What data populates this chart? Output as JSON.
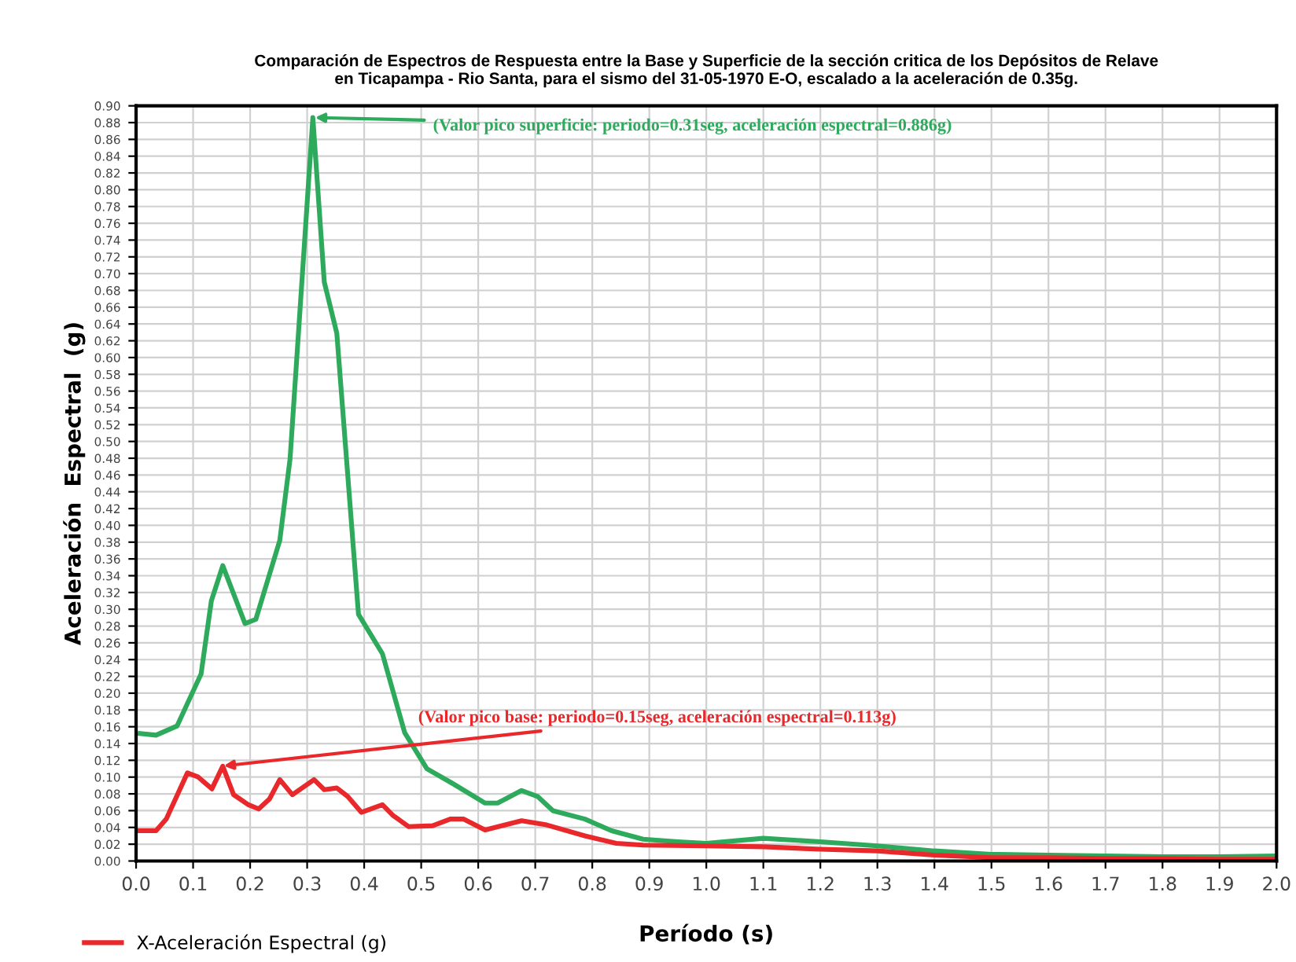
{
  "chart_data": {
    "type": "line",
    "title": "Comparación de Espectros de Respuesta entre la Base y Superficie de la sección critica de los Depósitos de Relave\nen Ticapampa - Rio Santa, para el sismo del 31-05-1970 E-O, escalado a la aceleración de 0.35g.",
    "xlabel": "Período (s)",
    "ylabel": "Aceleración  Espectral  (g)",
    "series": [
      {
        "color": "#2eaa5c",
        "x": [
          0.007,
          0.035,
          0.072,
          0.114,
          0.132,
          0.152,
          0.191,
          0.21,
          0.252,
          0.27,
          0.31,
          0.33,
          0.352,
          0.39,
          0.432,
          0.471,
          0.51,
          0.556,
          0.612,
          0.634,
          0.676,
          0.704,
          0.731,
          0.787,
          0.834,
          0.889,
          0.95,
          1.0,
          1.1,
          1.2,
          1.3,
          1.4,
          1.5,
          1.6,
          1.7,
          1.8,
          1.9,
          2.0
        ],
        "values": [
          0.152,
          0.15,
          0.161,
          0.223,
          0.31,
          0.352,
          0.283,
          0.288,
          0.382,
          0.479,
          0.886,
          0.69,
          0.629,
          0.294,
          0.247,
          0.153,
          0.11,
          0.092,
          0.069,
          0.069,
          0.084,
          0.077,
          0.06,
          0.05,
          0.036,
          0.026,
          0.023,
          0.021,
          0.027,
          0.023,
          0.018,
          0.012,
          0.008,
          0.007,
          0.006,
          0.005,
          0.005,
          0.006
        ]
      },
      {
        "name": "X-Aceleración Espectral (g)",
        "color": "#e8282b",
        "x": [
          0.007,
          0.035,
          0.053,
          0.09,
          0.109,
          0.133,
          0.152,
          0.171,
          0.197,
          0.215,
          0.234,
          0.252,
          0.274,
          0.312,
          0.33,
          0.352,
          0.371,
          0.395,
          0.432,
          0.451,
          0.478,
          0.52,
          0.551,
          0.574,
          0.612,
          0.676,
          0.72,
          0.787,
          0.842,
          0.889,
          1.0,
          1.1,
          1.2,
          1.3,
          1.4,
          1.5,
          1.6,
          1.7,
          1.8,
          1.9,
          2.0
        ],
        "values": [
          0.036,
          0.036,
          0.05,
          0.105,
          0.1,
          0.086,
          0.113,
          0.079,
          0.067,
          0.062,
          0.074,
          0.097,
          0.079,
          0.097,
          0.085,
          0.087,
          0.077,
          0.058,
          0.067,
          0.054,
          0.041,
          0.042,
          0.05,
          0.05,
          0.037,
          0.048,
          0.043,
          0.03,
          0.021,
          0.019,
          0.018,
          0.017,
          0.014,
          0.012,
          0.007,
          0.004,
          0.004,
          0.003,
          0.003,
          0.002,
          0.002
        ]
      }
    ],
    "annotations": [
      {
        "text": "(Valor pico superficie: periodo=0.31seg, aceleración espectral=0.886g)",
        "x": 0.31,
        "y": 0.886
      },
      {
        "text": "(Valor pico base: periodo=0.15seg, aceleración espectral=0.113g)",
        "x": 0.15,
        "y": 0.113
      }
    ],
    "xlim": [
      0.0,
      2.0
    ],
    "xticks": [
      {
        "value": 0.0,
        "label": "0.0"
      },
      {
        "value": 0.1,
        "label": "0.1"
      },
      {
        "value": 0.2,
        "label": "0.2"
      },
      {
        "value": 0.3,
        "label": "0.3"
      },
      {
        "value": 0.4,
        "label": "0.4"
      },
      {
        "value": 0.5,
        "label": "0.5"
      },
      {
        "value": 0.6,
        "label": "0.6"
      },
      {
        "value": 0.7,
        "label": "0.7"
      },
      {
        "value": 0.8,
        "label": "0.8"
      },
      {
        "value": 0.9,
        "label": "0.9"
      },
      {
        "value": 1.0,
        "label": "1.0"
      },
      {
        "value": 1.1,
        "label": "1.1"
      },
      {
        "value": 1.2,
        "label": "1.2"
      },
      {
        "value": 1.3,
        "label": "1.3"
      },
      {
        "value": 1.4,
        "label": "1.4"
      },
      {
        "value": 1.5,
        "label": "1.5"
      },
      {
        "value": 1.6,
        "label": "1.6"
      },
      {
        "value": 1.7,
        "label": "1.7"
      },
      {
        "value": 1.8,
        "label": "1.8"
      },
      {
        "value": 1.9,
        "label": "1.9"
      },
      {
        "value": 2.0,
        "label": "2.0"
      }
    ],
    "ylim": [
      0.0,
      0.9
    ],
    "yticks": [
      {
        "value": 0.0,
        "label": "0.00"
      },
      {
        "value": 0.02,
        "label": "0.02"
      },
      {
        "value": 0.04,
        "label": "0.04"
      },
      {
        "value": 0.06,
        "label": "0.06"
      },
      {
        "value": 0.08,
        "label": "0.08"
      },
      {
        "value": 0.1,
        "label": "0.10"
      },
      {
        "value": 0.12,
        "label": "0.12"
      },
      {
        "value": 0.14,
        "label": "0.14"
      },
      {
        "value": 0.16,
        "label": "0.16"
      },
      {
        "value": 0.18,
        "label": "0.18"
      },
      {
        "value": 0.2,
        "label": "0.20"
      },
      {
        "value": 0.22,
        "label": "0.22"
      },
      {
        "value": 0.24,
        "label": "0.24"
      },
      {
        "value": 0.26,
        "label": "0.26"
      },
      {
        "value": 0.28,
        "label": "0.28"
      },
      {
        "value": 0.3,
        "label": "0.30"
      },
      {
        "value": 0.32,
        "label": "0.32"
      },
      {
        "value": 0.34,
        "label": "0.34"
      },
      {
        "value": 0.36,
        "label": "0.36"
      },
      {
        "value": 0.38,
        "label": "0.38"
      },
      {
        "value": 0.4,
        "label": "0.40"
      },
      {
        "value": 0.42,
        "label": "0.42"
      },
      {
        "value": 0.44,
        "label": "0.44"
      },
      {
        "value": 0.46,
        "label": "0.46"
      },
      {
        "value": 0.48,
        "label": "0.48"
      },
      {
        "value": 0.5,
        "label": "0.50"
      },
      {
        "value": 0.52,
        "label": "0.52"
      },
      {
        "value": 0.54,
        "label": "0.54"
      },
      {
        "value": 0.56,
        "label": "0.56"
      },
      {
        "value": 0.58,
        "label": "0.58"
      },
      {
        "value": 0.6,
        "label": "0.60"
      },
      {
        "value": 0.62,
        "label": "0.62"
      },
      {
        "value": 0.64,
        "label": "0.64"
      },
      {
        "value": 0.66,
        "label": "0.66"
      },
      {
        "value": 0.68,
        "label": "0.68"
      },
      {
        "value": 0.7,
        "label": "0.70"
      },
      {
        "value": 0.72,
        "label": "0.72"
      },
      {
        "value": 0.74,
        "label": "0.74"
      },
      {
        "value": 0.76,
        "label": "0.76"
      },
      {
        "value": 0.78,
        "label": "0.78"
      },
      {
        "value": 0.8,
        "label": "0.80"
      },
      {
        "value": 0.82,
        "label": "0.82"
      },
      {
        "value": 0.84,
        "label": "0.84"
      },
      {
        "value": 0.86,
        "label": "0.86"
      },
      {
        "value": 0.88,
        "label": "0.88"
      },
      {
        "value": 0.9,
        "label": "0.90"
      }
    ],
    "grid": true,
    "legend": "bottom left",
    "marker": "none",
    "line_style": "solid"
  }
}
